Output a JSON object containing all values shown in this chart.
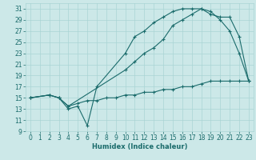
{
  "xlabel": "Humidex (Indice chaleur)",
  "bg_color": "#cce8e8",
  "line_color": "#1a6b6b",
  "grid_color": "#aad4d4",
  "xlim": [
    -0.5,
    23.5
  ],
  "ylim": [
    9,
    32
  ],
  "xticks": [
    0,
    1,
    2,
    3,
    4,
    5,
    6,
    7,
    8,
    9,
    10,
    11,
    12,
    13,
    14,
    15,
    16,
    17,
    18,
    19,
    20,
    21,
    22,
    23
  ],
  "yticks": [
    9,
    11,
    13,
    15,
    17,
    19,
    21,
    23,
    25,
    27,
    29,
    31
  ],
  "line1_x": [
    0,
    2,
    3,
    4,
    5,
    6,
    7,
    10,
    11,
    12,
    13,
    14,
    15,
    16,
    17,
    18,
    19,
    20,
    21,
    22,
    23
  ],
  "line1_y": [
    15,
    15.5,
    15,
    13,
    13.5,
    10,
    17,
    23,
    26,
    27,
    28.5,
    29.5,
    30.5,
    31,
    31,
    31,
    30.5,
    29,
    27,
    23,
    18
  ],
  "line2_x": [
    0,
    2,
    3,
    4,
    10,
    11,
    12,
    13,
    14,
    15,
    16,
    17,
    18,
    19,
    20,
    21,
    22,
    23
  ],
  "line2_y": [
    15,
    15.5,
    15,
    13.5,
    20,
    21.5,
    23,
    24,
    25.5,
    28,
    29,
    30,
    31,
    30,
    29.5,
    29.5,
    26,
    18
  ],
  "line3_x": [
    0,
    2,
    3,
    4,
    5,
    6,
    7,
    8,
    9,
    10,
    11,
    12,
    13,
    14,
    15,
    16,
    17,
    18,
    19,
    20,
    21,
    22,
    23
  ],
  "line3_y": [
    15,
    15.5,
    15,
    13.5,
    14,
    14.5,
    14.5,
    15,
    15,
    15.5,
    15.5,
    16,
    16,
    16.5,
    16.5,
    17,
    17,
    17.5,
    18,
    18,
    18,
    18,
    18
  ],
  "tick_fontsize": 5.5,
  "xlabel_fontsize": 6,
  "linewidth": 0.8,
  "markersize": 2.5
}
